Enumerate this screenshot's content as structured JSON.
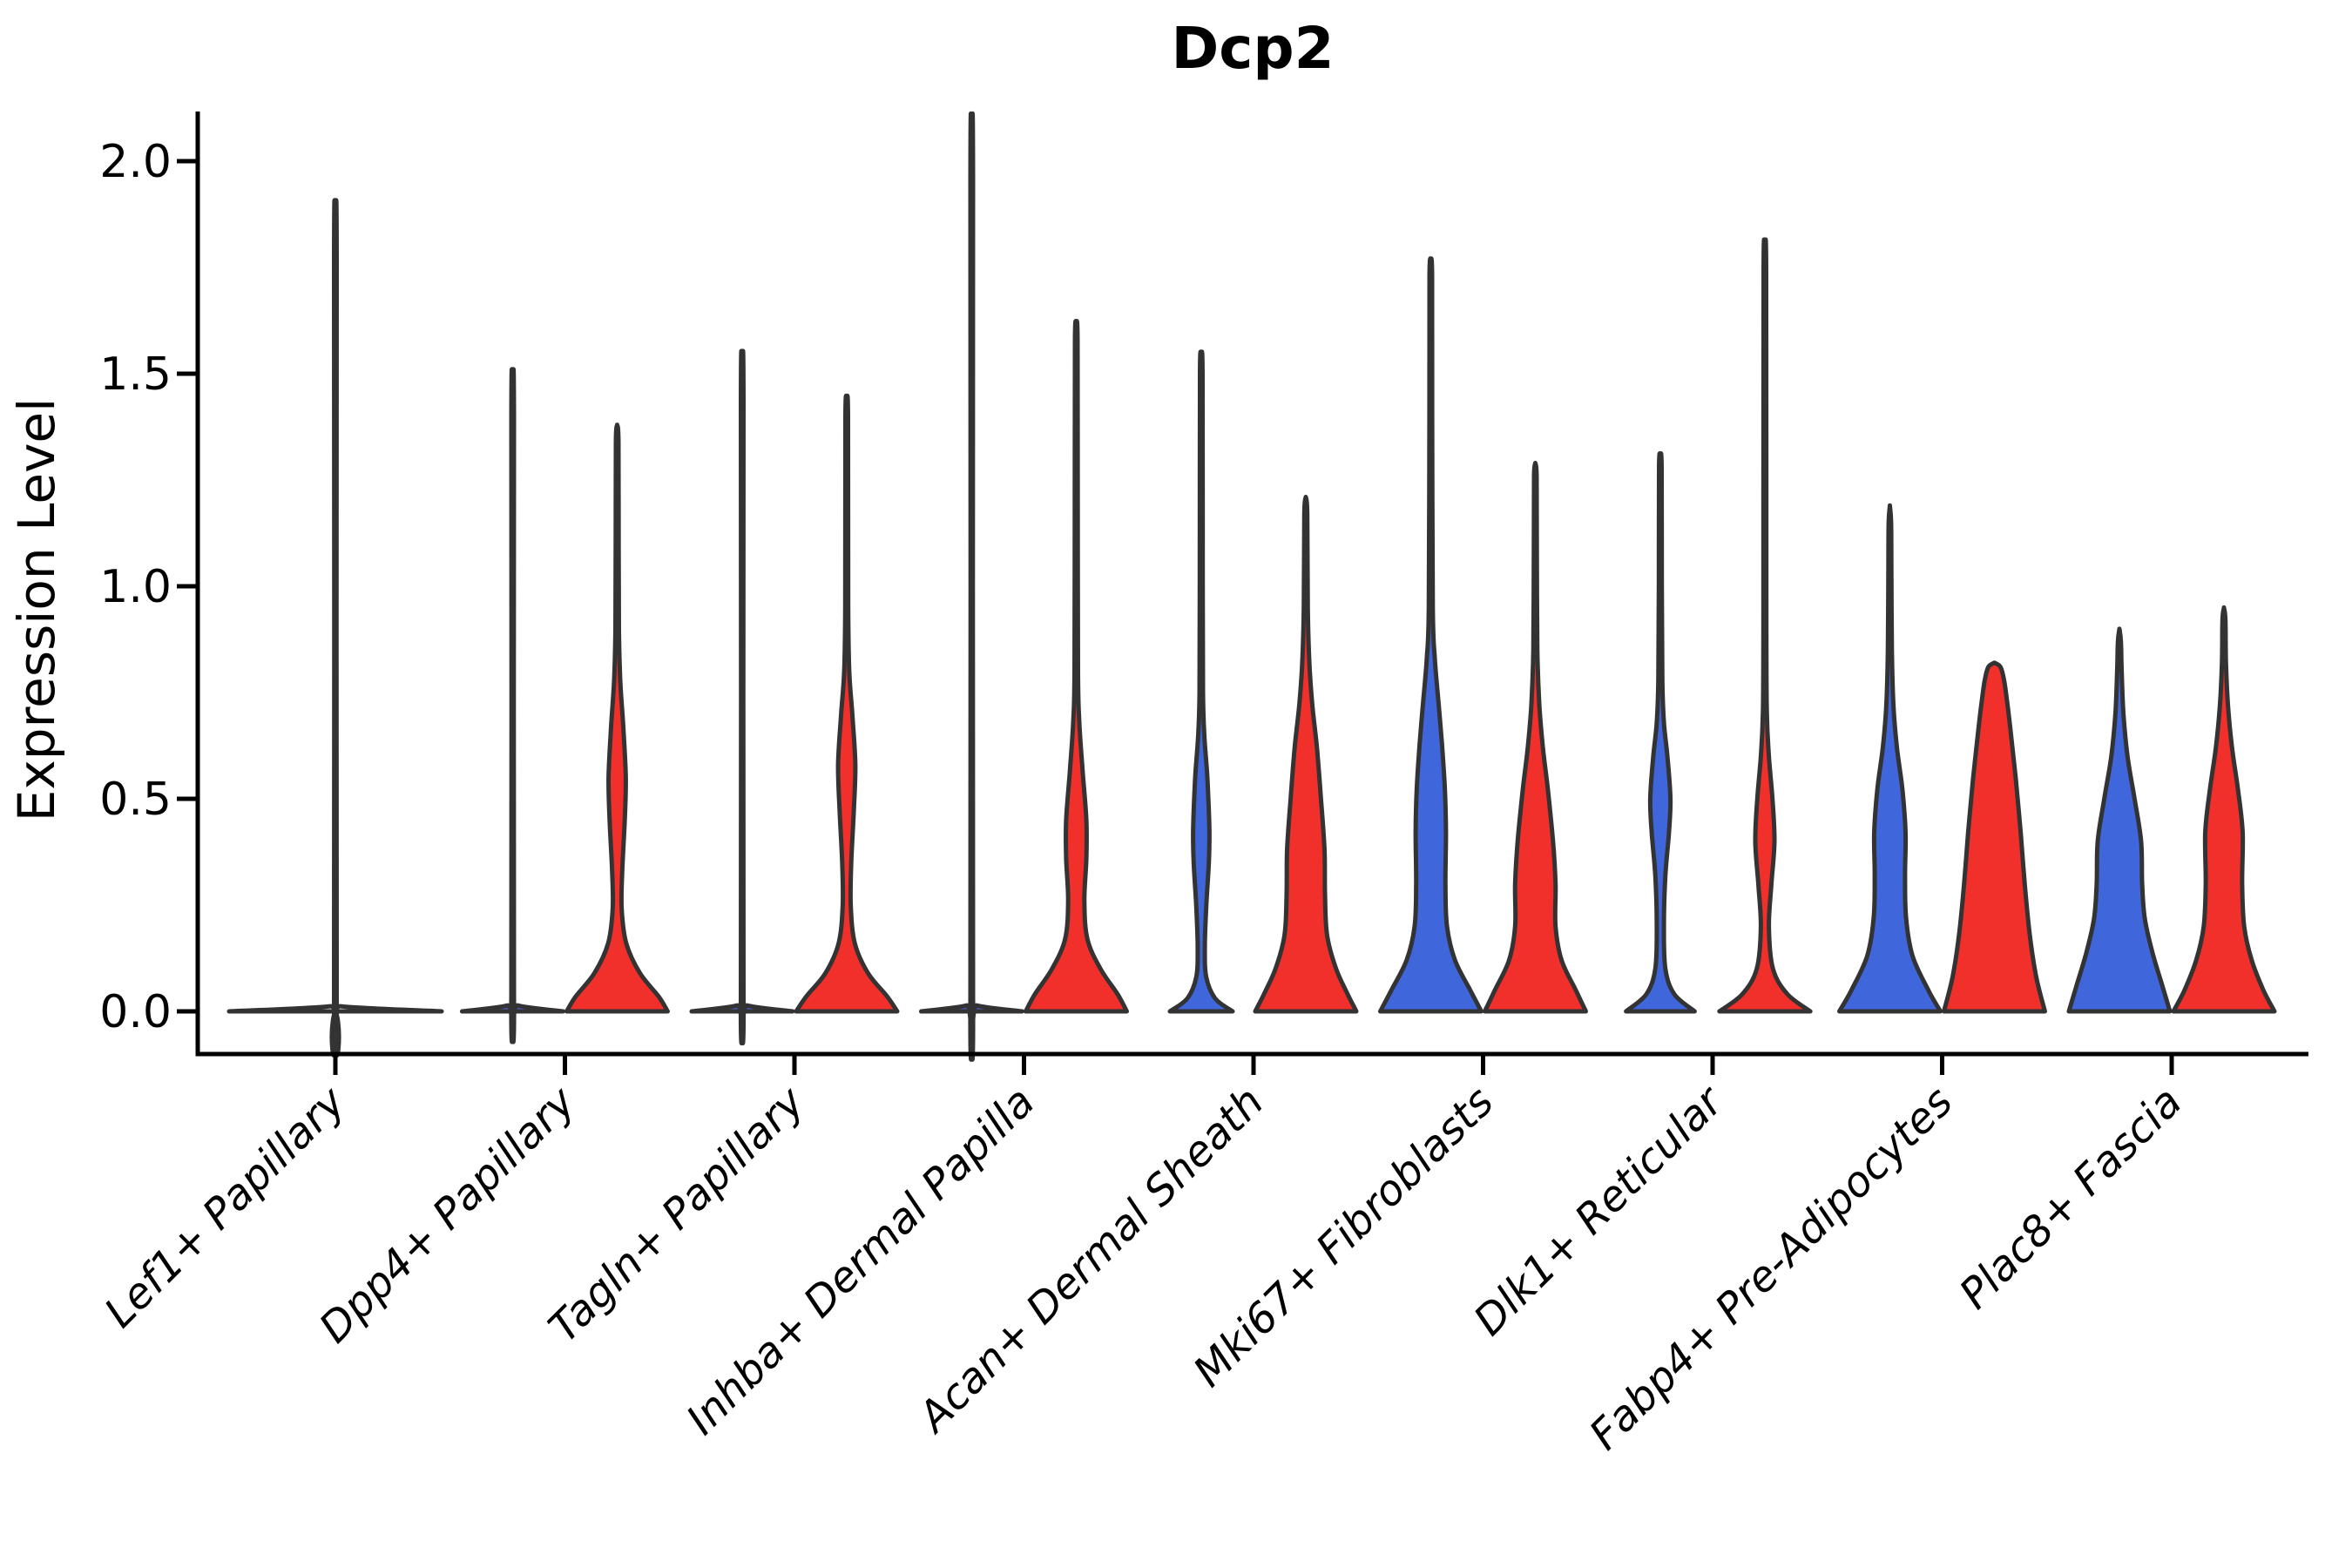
{
  "title": "Dcp2",
  "chart_data": {
    "type": "violin",
    "title": "Dcp2",
    "xlabel": "",
    "ylabel": "Expression Level",
    "ytick_labels": [
      "0.0",
      "0.5",
      "1.0",
      "1.5",
      "2.0"
    ],
    "ytick_values": [
      0.0,
      0.5,
      1.0,
      1.5,
      2.0
    ],
    "ylim": [
      -0.1,
      2.11
    ],
    "grid": false,
    "legend_position": "none",
    "x_label_rotation_deg": 45,
    "colors": {
      "blue": "#3F66DB",
      "red": "#F2302B",
      "dark": "#333333",
      "axis": "#000000"
    },
    "categories": [
      "Lef1+ Papillary",
      "Dpp4+ Papillary",
      "Tagln+ Papillary",
      "Inhba+ Dermal Papilla",
      "Acan+ Dermal Sheath",
      "Mki67+ Fibroblasts",
      "Dlk1+ Reticular",
      "Fabp4+ Pre-Adipocytes",
      "Plac8+ Fascia"
    ],
    "groups": [
      {
        "category": "Lef1+ Papillary",
        "violins": [
          {
            "side": "single",
            "color": "dark",
            "max_value": 1.8,
            "profile": [
              [
                0,
                1
              ],
              [
                0.012,
                0.05
              ],
              [
                0.03,
                0.012
              ],
              [
                1.77,
                0.012
              ],
              [
                1.8,
                0
              ]
            ]
          }
        ]
      },
      {
        "category": "Dpp4+ Papillary",
        "violins": [
          {
            "side": "left",
            "color": "blue",
            "max_value": 1.43,
            "profile": [
              [
                0,
                1
              ],
              [
                0.014,
                0.1
              ],
              [
                0.035,
                0.025
              ],
              [
                1.4,
                0.025
              ],
              [
                1.43,
                0
              ]
            ]
          },
          {
            "side": "right",
            "color": "red",
            "max_value": 1.38,
            "profile": [
              [
                0,
                1
              ],
              [
                0.035,
                0.82
              ],
              [
                0.09,
                0.45
              ],
              [
                0.16,
                0.18
              ],
              [
                0.24,
                0.09
              ],
              [
                0.33,
                0.1
              ],
              [
                0.45,
                0.15
              ],
              [
                0.55,
                0.17
              ],
              [
                0.67,
                0.12
              ],
              [
                0.78,
                0.06
              ],
              [
                0.9,
                0.035
              ],
              [
                1.1,
                0.03
              ],
              [
                1.34,
                0.025
              ],
              [
                1.38,
                0
              ]
            ]
          }
        ]
      },
      {
        "category": "Tagln+ Papillary",
        "violins": [
          {
            "side": "left",
            "color": "blue",
            "max_value": 1.47,
            "profile": [
              [
                0,
                1
              ],
              [
                0.014,
                0.1
              ],
              [
                0.035,
                0.025
              ],
              [
                1.44,
                0.025
              ],
              [
                1.47,
                0
              ]
            ]
          },
          {
            "side": "right",
            "color": "red",
            "max_value": 1.44,
            "profile": [
              [
                0,
                1
              ],
              [
                0.035,
                0.8
              ],
              [
                0.09,
                0.42
              ],
              [
                0.16,
                0.16
              ],
              [
                0.25,
                0.08
              ],
              [
                0.35,
                0.09
              ],
              [
                0.47,
                0.14
              ],
              [
                0.58,
                0.17
              ],
              [
                0.7,
                0.11
              ],
              [
                0.8,
                0.05
              ],
              [
                0.95,
                0.03
              ],
              [
                1.4,
                0.025
              ],
              [
                1.44,
                0
              ]
            ]
          }
        ]
      },
      {
        "category": "Inhba+ Dermal Papilla",
        "violins": [
          {
            "side": "left",
            "color": "blue",
            "max_value": 1.99,
            "profile": [
              [
                0,
                1
              ],
              [
                0.014,
                0.1
              ],
              [
                0.035,
                0.025
              ],
              [
                1.96,
                0.025
              ],
              [
                1.99,
                0
              ]
            ]
          },
          {
            "side": "right",
            "color": "red",
            "max_value": 1.62,
            "profile": [
              [
                0,
                1
              ],
              [
                0.04,
                0.82
              ],
              [
                0.1,
                0.48
              ],
              [
                0.17,
                0.22
              ],
              [
                0.26,
                0.16
              ],
              [
                0.36,
                0.2
              ],
              [
                0.45,
                0.2
              ],
              [
                0.56,
                0.13
              ],
              [
                0.68,
                0.06
              ],
              [
                0.8,
                0.035
              ],
              [
                1.2,
                0.03
              ],
              [
                1.58,
                0.025
              ],
              [
                1.62,
                0
              ]
            ]
          }
        ]
      },
      {
        "category": "Acan+ Dermal Sheath",
        "violins": [
          {
            "side": "left",
            "color": "blue",
            "max_value": 1.54,
            "profile": [
              [
                0,
                0.62
              ],
              [
                0.03,
                0.28
              ],
              [
                0.08,
                0.1
              ],
              [
                0.15,
                0.07
              ],
              [
                0.25,
                0.1
              ],
              [
                0.35,
                0.15
              ],
              [
                0.43,
                0.16
              ],
              [
                0.55,
                0.12
              ],
              [
                0.65,
                0.06
              ],
              [
                0.75,
                0.035
              ],
              [
                1.0,
                0.03
              ],
              [
                1.5,
                0.025
              ],
              [
                1.54,
                0
              ]
            ]
          },
          {
            "side": "right",
            "color": "red",
            "max_value": 1.21,
            "profile": [
              [
                0,
                1
              ],
              [
                0.04,
                0.83
              ],
              [
                0.1,
                0.6
              ],
              [
                0.18,
                0.42
              ],
              [
                0.28,
                0.38
              ],
              [
                0.38,
                0.37
              ],
              [
                0.5,
                0.3
              ],
              [
                0.62,
                0.22
              ],
              [
                0.72,
                0.13
              ],
              [
                0.82,
                0.07
              ],
              [
                0.95,
                0.04
              ],
              [
                1.17,
                0.03
              ],
              [
                1.21,
                0
              ]
            ]
          }
        ]
      },
      {
        "category": "Mki67+ Fibroblasts",
        "violins": [
          {
            "side": "left",
            "color": "blue",
            "max_value": 1.77,
            "profile": [
              [
                0,
                1
              ],
              [
                0.05,
                0.78
              ],
              [
                0.12,
                0.48
              ],
              [
                0.2,
                0.32
              ],
              [
                0.3,
                0.29
              ],
              [
                0.42,
                0.3
              ],
              [
                0.52,
                0.28
              ],
              [
                0.63,
                0.22
              ],
              [
                0.73,
                0.15
              ],
              [
                0.83,
                0.08
              ],
              [
                0.95,
                0.04
              ],
              [
                1.4,
                0.028
              ],
              [
                1.73,
                0.025
              ],
              [
                1.77,
                0
              ]
            ]
          },
          {
            "side": "right",
            "color": "red",
            "max_value": 1.29,
            "profile": [
              [
                0,
                1
              ],
              [
                0.05,
                0.8
              ],
              [
                0.12,
                0.52
              ],
              [
                0.2,
                0.4
              ],
              [
                0.3,
                0.4
              ],
              [
                0.4,
                0.35
              ],
              [
                0.52,
                0.25
              ],
              [
                0.62,
                0.15
              ],
              [
                0.72,
                0.08
              ],
              [
                0.85,
                0.04
              ],
              [
                1.1,
                0.03
              ],
              [
                1.26,
                0.025
              ],
              [
                1.29,
                0
              ]
            ]
          }
        ]
      },
      {
        "category": "Dlk1+ Reticular",
        "violins": [
          {
            "side": "left",
            "color": "blue",
            "max_value": 1.31,
            "profile": [
              [
                0,
                0.68
              ],
              [
                0.04,
                0.28
              ],
              [
                0.1,
                0.1
              ],
              [
                0.2,
                0.07
              ],
              [
                0.32,
                0.1
              ],
              [
                0.42,
                0.17
              ],
              [
                0.5,
                0.2
              ],
              [
                0.6,
                0.14
              ],
              [
                0.68,
                0.07
              ],
              [
                0.78,
                0.04
              ],
              [
                1.0,
                0.03
              ],
              [
                1.28,
                0.025
              ],
              [
                1.31,
                0
              ]
            ]
          },
          {
            "side": "right",
            "color": "red",
            "max_value": 1.78,
            "profile": [
              [
                0,
                0.9
              ],
              [
                0.04,
                0.45
              ],
              [
                0.1,
                0.16
              ],
              [
                0.2,
                0.08
              ],
              [
                0.3,
                0.13
              ],
              [
                0.4,
                0.19
              ],
              [
                0.5,
                0.15
              ],
              [
                0.6,
                0.08
              ],
              [
                0.7,
                0.04
              ],
              [
                0.9,
                0.03
              ],
              [
                1.74,
                0.025
              ],
              [
                1.78,
                0
              ]
            ]
          }
        ]
      },
      {
        "category": "Fabp4+ Pre-Adipocytes",
        "violins": [
          {
            "side": "left",
            "color": "blue",
            "max_value": 1.19,
            "profile": [
              [
                0,
                1
              ],
              [
                0.05,
                0.76
              ],
              [
                0.13,
                0.45
              ],
              [
                0.22,
                0.32
              ],
              [
                0.32,
                0.3
              ],
              [
                0.42,
                0.31
              ],
              [
                0.52,
                0.25
              ],
              [
                0.62,
                0.14
              ],
              [
                0.72,
                0.07
              ],
              [
                0.85,
                0.04
              ],
              [
                1.05,
                0.03
              ],
              [
                1.15,
                0.025
              ],
              [
                1.19,
                0
              ]
            ]
          },
          {
            "side": "right",
            "color": "red",
            "max_value": 0.82,
            "profile": [
              [
                0,
                1
              ],
              [
                0.08,
                0.83
              ],
              [
                0.18,
                0.7
              ],
              [
                0.3,
                0.6
              ],
              [
                0.42,
                0.52
              ],
              [
                0.55,
                0.42
              ],
              [
                0.65,
                0.33
              ],
              [
                0.73,
                0.25
              ],
              [
                0.78,
                0.19
              ],
              [
                0.81,
                0.12
              ],
              [
                0.82,
                0
              ]
            ]
          }
        ]
      },
      {
        "category": "Plac8+ Fascia",
        "violins": [
          {
            "side": "left",
            "color": "blue",
            "max_value": 0.9,
            "profile": [
              [
                0,
                1
              ],
              [
                0.06,
                0.85
              ],
              [
                0.14,
                0.65
              ],
              [
                0.22,
                0.5
              ],
              [
                0.3,
                0.45
              ],
              [
                0.4,
                0.43
              ],
              [
                0.5,
                0.3
              ],
              [
                0.6,
                0.16
              ],
              [
                0.7,
                0.08
              ],
              [
                0.8,
                0.045
              ],
              [
                0.87,
                0.03
              ],
              [
                0.9,
                0
              ]
            ]
          },
          {
            "side": "right",
            "color": "red",
            "max_value": 0.95,
            "profile": [
              [
                0,
                1
              ],
              [
                0.05,
                0.78
              ],
              [
                0.12,
                0.55
              ],
              [
                0.2,
                0.4
              ],
              [
                0.3,
                0.36
              ],
              [
                0.42,
                0.37
              ],
              [
                0.52,
                0.28
              ],
              [
                0.62,
                0.16
              ],
              [
                0.72,
                0.08
              ],
              [
                0.82,
                0.04
              ],
              [
                0.92,
                0.03
              ],
              [
                0.95,
                0
              ]
            ]
          }
        ]
      }
    ]
  }
}
